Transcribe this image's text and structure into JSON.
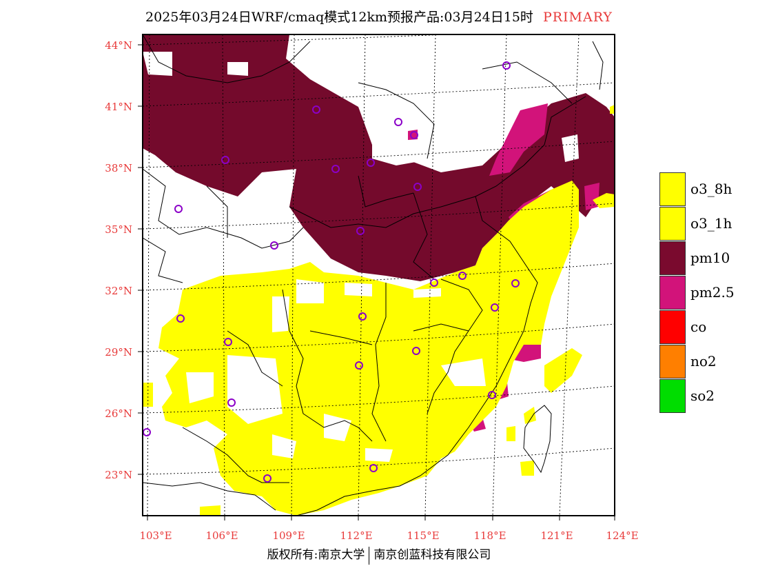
{
  "header": {
    "title": "2025年03月24日WRF/cmaq模式12km预报产品:03月24日15时",
    "primary_label": "PRIMARY"
  },
  "map": {
    "lat_labels": [
      "44°N",
      "41°N",
      "38°N",
      "35°N",
      "32°N",
      "29°N",
      "26°N",
      "23°N"
    ],
    "lon_labels": [
      "103°E",
      "106°E",
      "109°E",
      "112°E",
      "115°E",
      "118°E",
      "121°E",
      "124°E"
    ],
    "dominant_pollutant_regions": [
      "pm10",
      "pm2.5",
      "o3_8h"
    ]
  },
  "legend": {
    "items": [
      {
        "label": "o3_8h",
        "color": "#ffff00"
      },
      {
        "label": "o3_1h",
        "color": "#ffff00"
      },
      {
        "label": "pm10",
        "color": "#7a0a2e"
      },
      {
        "label": "pm2.5",
        "color": "#d2137a"
      },
      {
        "label": "co",
        "color": "#ff0000"
      },
      {
        "label": "no2",
        "color": "#ff7f00"
      },
      {
        "label": "so2",
        "color": "#00dd00"
      }
    ]
  },
  "footer": {
    "left": "版权所有:南京大学",
    "right": "南京创蓝科技有限公司"
  }
}
